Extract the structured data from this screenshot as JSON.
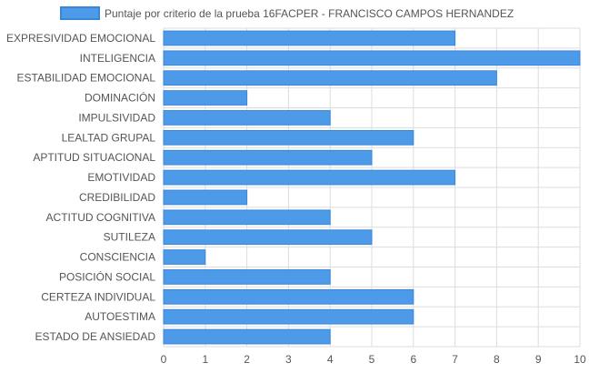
{
  "chart_data": {
    "type": "bar",
    "orientation": "horizontal",
    "title": "",
    "legend": {
      "position": "top",
      "series_name": "Puntaje por criterio de la prueba 16FACPER - FRANCISCO CAMPOS HERNANDEZ",
      "color": "#4d9be8"
    },
    "categories": [
      "EXPRESIVIDAD EMOCIONAL",
      "INTELIGENCIA",
      "ESTABILIDAD EMOCIONAL",
      "DOMINACIÓN",
      "IMPULSIVIDAD",
      "LEALTAD GRUPAL",
      "APTITUD SITUACIONAL",
      "EMOTIVIDAD",
      "CREDIBILIDAD",
      "ACTITUD COGNITIVA",
      "SUTILEZA",
      "CONSCIENCIA",
      "POSICIÓN SOCIAL",
      "CERTEZA INDIVIDUAL",
      "AUTOESTIMA",
      "ESTADO DE ANSIEDAD"
    ],
    "series": [
      {
        "name": "Puntaje por criterio de la prueba 16FACPER - FRANCISCO CAMPOS HERNANDEZ",
        "values": [
          7,
          10,
          8,
          2,
          4,
          6,
          5,
          7,
          2,
          4,
          5,
          1,
          4,
          6,
          6,
          4
        ]
      }
    ],
    "x_ticks": [
      "0",
      "1",
      "2",
      "3",
      "4",
      "5",
      "6",
      "7",
      "8",
      "9",
      "10"
    ],
    "xlim": [
      0,
      10
    ],
    "xlabel": "",
    "ylabel": "",
    "grid": true,
    "colors": {
      "bar_fill": "#4d9be8",
      "bar_border": "#3a86d9",
      "grid": "#dddddd",
      "text": "#555555"
    }
  }
}
